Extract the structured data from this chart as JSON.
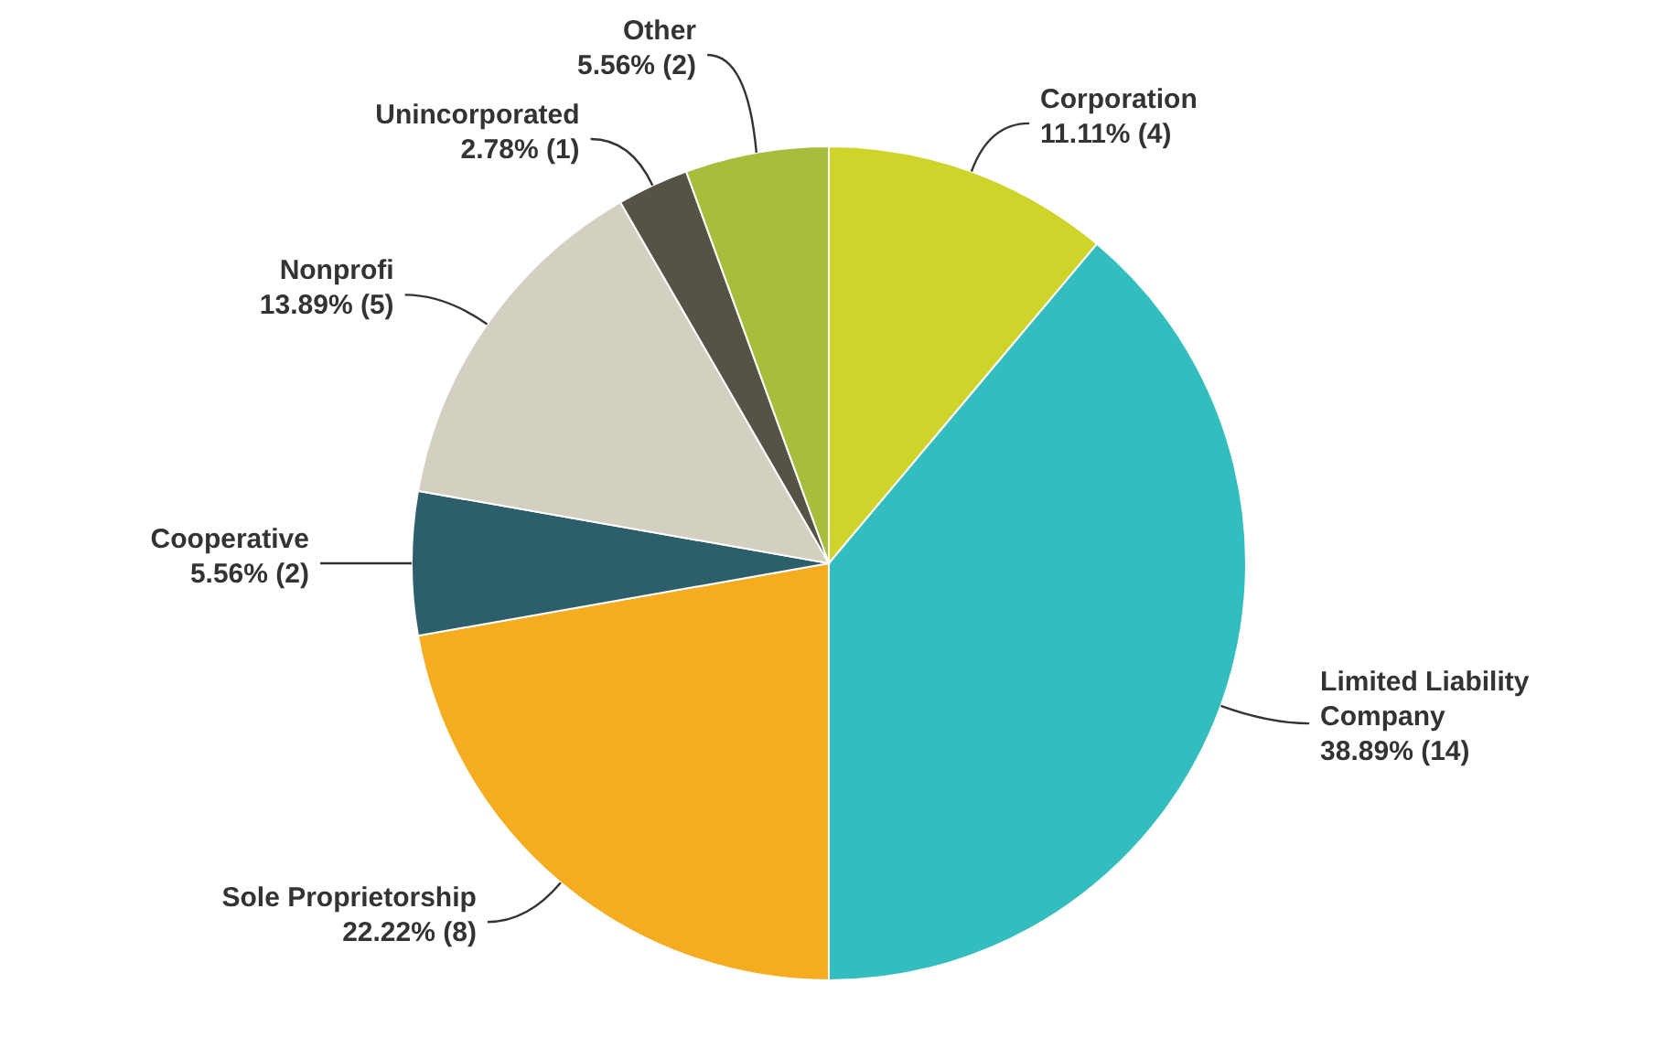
{
  "chart_data": {
    "type": "pie",
    "categories": [
      "Corporation",
      "Limited Liability Company",
      "Sole Proprietorship",
      "Cooperative",
      "Nonprofi",
      "Unincorporated",
      "Other"
    ],
    "values": [
      4,
      14,
      8,
      2,
      5,
      1,
      2
    ],
    "value_labels": [
      "11.11% (4)",
      "38.89% (14)",
      "22.22% (8)",
      "5.56% (2)",
      "13.89% (5)",
      "2.78% (1)",
      "5.56% (2)"
    ],
    "colors": [
      "#cfd42a",
      "#33bdbf",
      "#f5ac20",
      "#2d5f6b",
      "#d3d0c2",
      "#555346",
      "#a9bd3c"
    ]
  }
}
